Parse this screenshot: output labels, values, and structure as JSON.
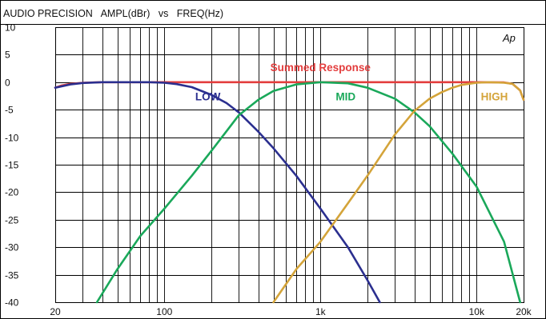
{
  "header": {
    "brand": "AUDIO PRECISION",
    "y_quantity": "AMPL(dBr)",
    "vs": "vs",
    "x_quantity": "FREQ(Hz)"
  },
  "logo_text": "Ap",
  "colors": {
    "low": "#2b2f8f",
    "mid": "#1aa85a",
    "high": "#d4a43a",
    "summed": "#e33d3d",
    "grid": "#000000"
  },
  "chart_data": {
    "type": "line",
    "title": "AUDIO PRECISION   AMPL(dBr)   vs   FREQ(Hz)",
    "xlabel": "FREQ(Hz)",
    "ylabel": "AMPL(dBr)",
    "x_scale": "log",
    "xlim": [
      20,
      20000
    ],
    "ylim": [
      -40,
      10
    ],
    "grid": true,
    "x_ticks": [
      {
        "value": 20,
        "label": "20"
      },
      {
        "value": 100,
        "label": "100"
      },
      {
        "value": 1000,
        "label": "1k"
      },
      {
        "value": 10000,
        "label": "10k"
      },
      {
        "value": 20000,
        "label": "20k"
      }
    ],
    "y_ticks": [
      {
        "value": 10,
        "label": "10"
      },
      {
        "value": 5,
        "label": "5"
      },
      {
        "value": 0,
        "label": "0"
      },
      {
        "value": -5,
        "label": "-5"
      },
      {
        "value": -10,
        "label": "-10"
      },
      {
        "value": -15,
        "label": "-15"
      },
      {
        "value": -20,
        "label": "-20"
      },
      {
        "value": -25,
        "label": "-25"
      },
      {
        "value": -30,
        "label": "-30"
      },
      {
        "value": -35,
        "label": "-35"
      },
      {
        "value": -40,
        "label": "-40"
      }
    ],
    "series": [
      {
        "name": "Summed Response",
        "color": "#e33d3d",
        "label_at": {
          "x": 1000,
          "y": 2
        },
        "x": [
          20,
          22,
          25,
          30,
          40,
          60,
          100,
          300,
          1000,
          3000,
          10000,
          15000,
          17000,
          19000,
          20000
        ],
        "y": [
          -1,
          -0.6,
          -0.3,
          -0.1,
          0,
          0,
          0,
          0,
          0,
          0,
          0,
          -0.05,
          -0.3,
          -1.5,
          -3.2
        ]
      },
      {
        "name": "LOW",
        "color": "#2b2f8f",
        "label_at": {
          "x": 190,
          "y": -3.3
        },
        "x": [
          20,
          25,
          30,
          40,
          60,
          80,
          100,
          120,
          150,
          200,
          250,
          300,
          400,
          500,
          700,
          1000,
          1500,
          2000,
          2400
        ],
        "y": [
          -1,
          -0.4,
          -0.15,
          0,
          0,
          0,
          -0.1,
          -0.35,
          -0.9,
          -2.3,
          -3.8,
          -5.5,
          -9,
          -12,
          -17,
          -23,
          -30,
          -36,
          -40
        ]
      },
      {
        "name": "MID",
        "color": "#1aa85a",
        "label_at": {
          "x": 1450,
          "y": -3.3
        },
        "x": [
          37,
          50,
          70,
          100,
          150,
          200,
          300,
          400,
          500,
          700,
          1000,
          1500,
          2000,
          3000,
          4000,
          5000,
          7000,
          10000,
          15000,
          19000
        ],
        "y": [
          -40,
          -34,
          -28,
          -23,
          -17,
          -12.5,
          -6,
          -3.2,
          -1.6,
          -0.4,
          0,
          -0.2,
          -1,
          -3,
          -5.5,
          -8,
          -13,
          -19,
          -29,
          -40
        ]
      },
      {
        "name": "HIGH",
        "color": "#d4a43a",
        "label_at": {
          "x": 13000,
          "y": -3.3
        },
        "x": [
          500,
          700,
          1000,
          1500,
          2000,
          3000,
          4000,
          5000,
          6000,
          7000,
          8000,
          10000,
          12000,
          15000,
          17000,
          19000,
          20000
        ],
        "y": [
          -40,
          -34,
          -29,
          -22,
          -17,
          -9.5,
          -5.2,
          -3,
          -1.8,
          -1,
          -0.5,
          -0.1,
          0,
          -0.1,
          -0.3,
          -1.5,
          -3.2
        ]
      }
    ]
  }
}
